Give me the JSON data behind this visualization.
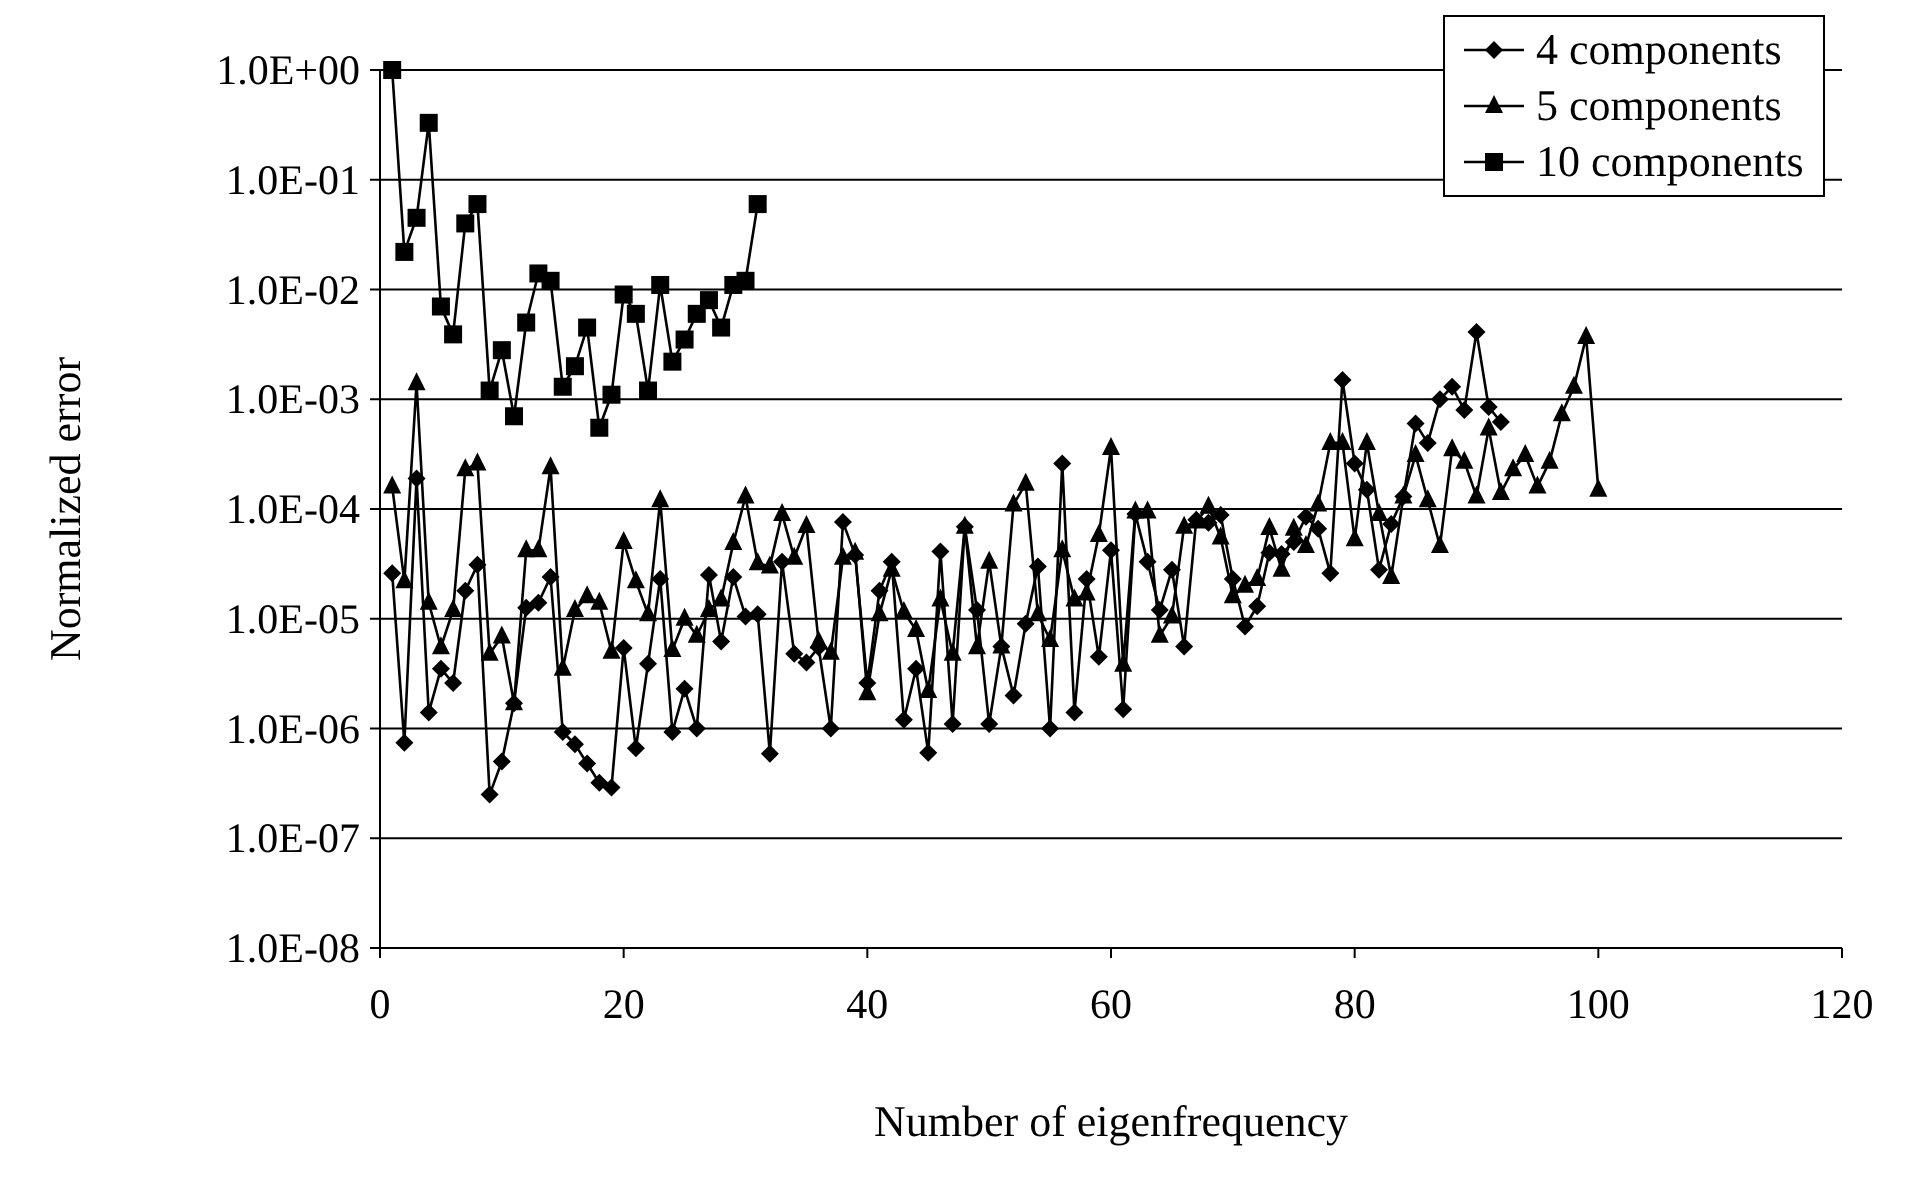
{
  "chart_data": {
    "type": "line",
    "xlabel": "Number of eigenfrequency",
    "ylabel": "Normalized error",
    "xlim": [
      0,
      120
    ],
    "xticks": [
      0,
      20,
      40,
      60,
      80,
      100,
      120
    ],
    "ylim": [
      1e-08,
      1
    ],
    "log": "y",
    "grid": "y",
    "legend": "top right",
    "line_style": "solid",
    "yticks": [
      {
        "value": 1e-08,
        "label": "1.0E-08"
      },
      {
        "value": 1e-07,
        "label": "1.0E-07"
      },
      {
        "value": 1e-06,
        "label": "1.0E-06"
      },
      {
        "value": 1e-05,
        "label": "1.0E-05"
      },
      {
        "value": 0.0001,
        "label": "1.0E-04"
      },
      {
        "value": 0.001,
        "label": "1.0E-03"
      },
      {
        "value": 0.01,
        "label": "1.0E-02"
      },
      {
        "value": 0.1,
        "label": "1.0E-01"
      },
      {
        "value": 1,
        "label": "1.0E+00"
      }
    ],
    "series": [
      {
        "name": "4 components",
        "color": "#000000",
        "marker": "diamond",
        "x": [
          1,
          2,
          3,
          4,
          5,
          6,
          7,
          8,
          9,
          10,
          11,
          12,
          13,
          14,
          15,
          16,
          17,
          18,
          19,
          20,
          21,
          22,
          23,
          24,
          25,
          26,
          27,
          28,
          29,
          30,
          31,
          32,
          33,
          34,
          35,
          36,
          37,
          38,
          39,
          40,
          41,
          42,
          43,
          44,
          45,
          46,
          47,
          48,
          49,
          50,
          51,
          52,
          53,
          54,
          55,
          56,
          57,
          58,
          59,
          60,
          61,
          62,
          63,
          64,
          65,
          66,
          67,
          68,
          69,
          70,
          71,
          72,
          73,
          74,
          75,
          76,
          77,
          78,
          79,
          80,
          81,
          82,
          83,
          84,
          85,
          86,
          87,
          88,
          89,
          90,
          91,
          92
        ],
        "values": [
          2.6e-05,
          7.4e-07,
          0.00019,
          1.4e-06,
          3.5e-06,
          2.6e-06,
          1.8e-05,
          3.1e-05,
          2.5e-07,
          5e-07,
          1.7e-06,
          1.26e-05,
          1.4e-05,
          2.4e-05,
          9.3e-07,
          7.2e-07,
          4.8e-07,
          3.2e-07,
          2.9e-07,
          5.4e-06,
          6.6e-07,
          3.9e-06,
          2.3e-05,
          9.3e-07,
          2.3e-06,
          1e-06,
          2.5e-05,
          6.2e-06,
          2.4e-05,
          1.05e-05,
          1.1e-05,
          5.9e-07,
          3.3e-05,
          4.8e-06,
          4e-06,
          5.5e-06,
          1e-06,
          7.6e-05,
          3.8e-05,
          2.6e-06,
          1.8e-05,
          3.3e-05,
          1.2e-06,
          3.5e-06,
          6e-07,
          4.1e-05,
          1.1e-06,
          6.9e-05,
          1.2e-05,
          1.1e-06,
          5.6e-06,
          2e-06,
          9e-06,
          3e-05,
          1e-06,
          0.00026,
          1.4e-06,
          2.3e-05,
          4.5e-06,
          4.2e-05,
          1.5e-06,
          9e-05,
          3.3e-05,
          1.2e-05,
          2.8e-05,
          5.6e-06,
          8e-05,
          7.5e-05,
          8.8e-05,
          2.3e-05,
          8.5e-06,
          1.3e-05,
          4e-05,
          3.9e-05,
          5e-05,
          8.5e-05,
          6.6e-05,
          2.6e-05,
          0.0015,
          0.00026,
          0.00015,
          2.8e-05,
          7.3e-05,
          0.00013,
          0.0006,
          0.0004,
          0.001,
          0.0013,
          0.0008,
          0.0041,
          0.00085,
          0.00062
        ]
      },
      {
        "name": "5 components",
        "color": "#000000",
        "marker": "triangle",
        "x": [
          1,
          2,
          3,
          4,
          5,
          6,
          7,
          8,
          9,
          10,
          11,
          12,
          13,
          14,
          15,
          16,
          17,
          18,
          19,
          20,
          21,
          22,
          23,
          24,
          25,
          26,
          27,
          28,
          29,
          30,
          31,
          32,
          33,
          34,
          35,
          36,
          37,
          38,
          39,
          40,
          41,
          42,
          43,
          44,
          45,
          46,
          47,
          48,
          49,
          50,
          51,
          52,
          53,
          54,
          55,
          56,
          57,
          58,
          59,
          60,
          61,
          62,
          63,
          64,
          65,
          66,
          67,
          68,
          69,
          70,
          71,
          72,
          73,
          74,
          75,
          76,
          77,
          78,
          79,
          80,
          81,
          82,
          83,
          84,
          85,
          86,
          87,
          88,
          89,
          90,
          91,
          92,
          93,
          94,
          95,
          96,
          97,
          98,
          99,
          100
        ],
        "values": [
          0.00016,
          2.2e-05,
          0.0014,
          1.4e-05,
          5.5e-06,
          1.2e-05,
          0.00023,
          0.00026,
          4.8e-06,
          6.9e-06,
          1.7e-06,
          4.2e-05,
          4.2e-05,
          0.00024,
          3.5e-06,
          1.2e-05,
          1.6e-05,
          1.4e-05,
          5e-06,
          5e-05,
          2.2e-05,
          1.1e-05,
          0.00012,
          5.2e-06,
          1e-05,
          7e-06,
          1.2e-05,
          1.5e-05,
          4.9e-05,
          0.00013,
          3.2e-05,
          3e-05,
          9e-05,
          3.6e-05,
          7e-05,
          6.2e-06,
          4.9e-06,
          3.6e-05,
          4e-05,
          2.1e-06,
          1.1e-05,
          2.8e-05,
          1.15e-05,
          7.9e-06,
          2.2e-06,
          1.5e-05,
          4.8e-06,
          6.9e-05,
          5.5e-06,
          3.3e-05,
          5.6e-06,
          0.00011,
          0.00017,
          1.1e-05,
          6.4e-06,
          4.2e-05,
          1.5e-05,
          1.7e-05,
          5.8e-05,
          0.00036,
          3.8e-06,
          9.5e-05,
          9.5e-05,
          7e-06,
          1.05e-05,
          6.9e-05,
          7.7e-05,
          0.000105,
          5.5e-05,
          1.6e-05,
          2e-05,
          2.3e-05,
          6.7e-05,
          2.8e-05,
          6.6e-05,
          4.6e-05,
          0.00011,
          0.0004,
          0.0004,
          5.3e-05,
          0.0004,
          9e-05,
          2.4e-05,
          0.00013,
          0.00031,
          0.00012,
          4.6e-05,
          0.00035,
          0.00027,
          0.00013,
          0.00054,
          0.00014,
          0.00023,
          0.00031,
          0.00016,
          0.00027,
          0.00073,
          0.0013,
          0.0037,
          0.00015
        ]
      },
      {
        "name": "10 components",
        "color": "#000000",
        "marker": "square",
        "x": [
          1,
          2,
          3,
          4,
          5,
          6,
          7,
          8,
          9,
          10,
          11,
          12,
          13,
          14,
          15,
          16,
          17,
          18,
          19,
          20,
          21,
          22,
          23,
          24,
          25,
          26,
          27,
          28,
          29,
          30,
          31
        ],
        "values": [
          1,
          0.022,
          0.045,
          0.33,
          0.007,
          0.0039,
          0.04,
          0.06,
          0.0012,
          0.0028,
          0.0007,
          0.005,
          0.014,
          0.012,
          0.0013,
          0.002,
          0.0045,
          0.00055,
          0.0011,
          0.009,
          0.006,
          0.0012,
          0.011,
          0.0022,
          0.0035,
          0.006,
          0.008,
          0.0045,
          0.011,
          0.012,
          0.06
        ]
      }
    ]
  }
}
